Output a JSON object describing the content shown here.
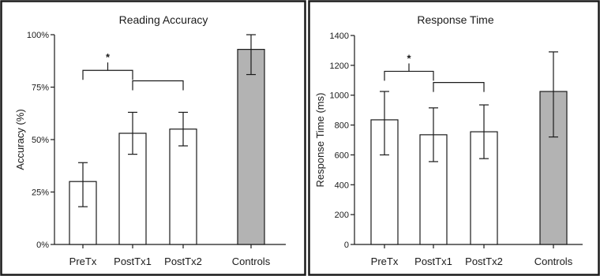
{
  "colors": {
    "bar_fill": "#ffffff",
    "control_fill": "#b3b3b3",
    "ink": "#1a1a1a"
  },
  "chart_data": [
    {
      "type": "bar",
      "title": "Reading Accuracy",
      "xlabel": "",
      "ylabel": "Accuracy (%)",
      "ylim": [
        0,
        100
      ],
      "yticks": [
        0,
        25,
        50,
        75,
        100
      ],
      "ytick_labels": [
        "0%",
        "25%",
        "50%",
        "75%",
        "100%"
      ],
      "categories": [
        "PreTx",
        "PostTx1",
        "PostTx2",
        "Controls"
      ],
      "values": [
        30,
        53,
        55,
        93
      ],
      "error_low": [
        18,
        43,
        47,
        81
      ],
      "error_high": [
        39,
        63,
        63,
        100
      ],
      "bar_colors": [
        "#ffffff",
        "#ffffff",
        "#ffffff",
        "#b3b3b3"
      ],
      "grid": false,
      "annotations": [
        {
          "type": "significance-bracket",
          "text": "*",
          "from": "PreTx",
          "to": "PostTx1",
          "y": 83
        },
        {
          "type": "significance-bracket",
          "text": "",
          "from": "PostTx1",
          "to": "PostTx2",
          "y": 78
        }
      ]
    },
    {
      "type": "bar",
      "title": "Response Time",
      "xlabel": "",
      "ylabel": "Response Time (ms)",
      "ylim": [
        0,
        1400
      ],
      "yticks": [
        0,
        200,
        400,
        600,
        800,
        1000,
        1200,
        1400
      ],
      "ytick_labels": [
        "0",
        "200",
        "400",
        "600",
        "800",
        "1000",
        "1200",
        "1400"
      ],
      "categories": [
        "PreTx",
        "PostTx1",
        "PostTx2",
        "Controls"
      ],
      "values": [
        835,
        735,
        755,
        1025
      ],
      "error_low": [
        600,
        555,
        575,
        720
      ],
      "error_high": [
        1025,
        915,
        935,
        1290
      ],
      "bar_colors": [
        "#ffffff",
        "#ffffff",
        "#ffffff",
        "#b3b3b3"
      ],
      "grid": false,
      "annotations": [
        {
          "type": "significance-bracket",
          "text": "*",
          "from": "PreTx",
          "to": "PostTx1",
          "y": 1160
        },
        {
          "type": "significance-bracket",
          "text": "",
          "from": "PostTx1",
          "to": "PostTx2",
          "y": 1085
        }
      ]
    }
  ]
}
